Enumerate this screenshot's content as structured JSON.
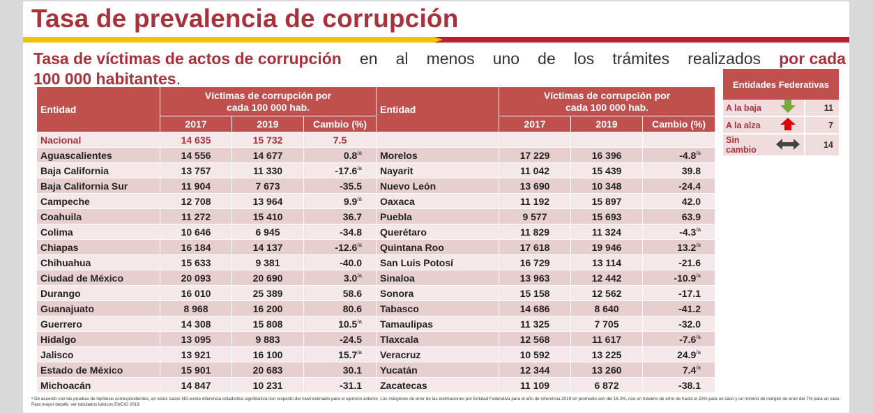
{
  "title": "Tasa de prevalencia de corrupción",
  "subtitle": {
    "part1": "Tasa de víctimas de actos de corrupción",
    "part2": "en",
    "part3": "al",
    "part4": "menos",
    "part5": "uno",
    "part6": "de",
    "part7": "los",
    "part8": "trámites",
    "part9": "realizados",
    "part10": "por cada",
    "part11": "100 000 habitantes",
    "part12": "."
  },
  "table": {
    "col_entidad": "Entidad",
    "col_group": "Víctimas de corrupción por cada 100 000 hab.",
    "col_2017": "2017",
    "col_2019": "2019",
    "col_cambio": "Cambio (%)",
    "nacional": {
      "name": "Nacional",
      "v2017": "14 635",
      "v2019": "15 732",
      "cambio": "7.5",
      "sup": ""
    },
    "left_rows": [
      {
        "name": "Aguascalientes",
        "v2017": "14 556",
        "v2019": "14 677",
        "cambio": "0.8",
        "sup": "/a"
      },
      {
        "name": "Baja California",
        "v2017": "13 757",
        "v2019": "11 330",
        "cambio": "-17.6",
        "sup": "/a"
      },
      {
        "name": "Baja California Sur",
        "v2017": "11 904",
        "v2019": "7 673",
        "cambio": "-35.5",
        "sup": ""
      },
      {
        "name": "Campeche",
        "v2017": "12 708",
        "v2019": "13 964",
        "cambio": "9.9",
        "sup": "/a"
      },
      {
        "name": "Coahuila",
        "v2017": "11 272",
        "v2019": "15 410",
        "cambio": "36.7",
        "sup": ""
      },
      {
        "name": "Colima",
        "v2017": "10 646",
        "v2019": "6 945",
        "cambio": "-34.8",
        "sup": ""
      },
      {
        "name": "Chiapas",
        "v2017": "16 184",
        "v2019": "14 137",
        "cambio": "-12.6",
        "sup": "/a"
      },
      {
        "name": "Chihuahua",
        "v2017": "15 633",
        "v2019": "9 381",
        "cambio": "-40.0",
        "sup": ""
      },
      {
        "name": "Ciudad de México",
        "v2017": "20 093",
        "v2019": "20 690",
        "cambio": "3.0",
        "sup": "/a"
      },
      {
        "name": "Durango",
        "v2017": "16 010",
        "v2019": "25 389",
        "cambio": "58.6",
        "sup": ""
      },
      {
        "name": "Guanajuato",
        "v2017": "8 968",
        "v2019": "16 200",
        "cambio": "80.6",
        "sup": ""
      },
      {
        "name": "Guerrero",
        "v2017": "14 308",
        "v2019": "15 808",
        "cambio": "10.5",
        "sup": "/a"
      },
      {
        "name": "Hidalgo",
        "v2017": "13 095",
        "v2019": "9 883",
        "cambio": "-24.5",
        "sup": ""
      },
      {
        "name": "Jalisco",
        "v2017": "13 921",
        "v2019": "16 100",
        "cambio": "15.7",
        "sup": "/a"
      },
      {
        "name": "Estado de México",
        "v2017": "15 901",
        "v2019": "20 683",
        "cambio": "30.1",
        "sup": ""
      },
      {
        "name": "Michoacán",
        "v2017": "14 847",
        "v2019": "10 231",
        "cambio": "-31.1",
        "sup": ""
      }
    ],
    "right_rows": [
      {
        "name": "Morelos",
        "v2017": "17 229",
        "v2019": "16 396",
        "cambio": "-4.8",
        "sup": "/a"
      },
      {
        "name": "Nayarit",
        "v2017": "11 042",
        "v2019": "15 439",
        "cambio": "39.8",
        "sup": ""
      },
      {
        "name": "Nuevo León",
        "v2017": "13 690",
        "v2019": "10 348",
        "cambio": "-24.4",
        "sup": ""
      },
      {
        "name": "Oaxaca",
        "v2017": "11 192",
        "v2019": "15 897",
        "cambio": "42.0",
        "sup": ""
      },
      {
        "name": "Puebla",
        "v2017": "9 577",
        "v2019": "15 693",
        "cambio": "63.9",
        "sup": ""
      },
      {
        "name": "Querétaro",
        "v2017": "11 829",
        "v2019": "11 324",
        "cambio": "-4.3",
        "sup": "/a"
      },
      {
        "name": "Quintana Roo",
        "v2017": "17 618",
        "v2019": "19 946",
        "cambio": "13.2",
        "sup": "/a"
      },
      {
        "name": "San Luis Potosí",
        "v2017": "16 729",
        "v2019": "13 114",
        "cambio": "-21.6",
        "sup": ""
      },
      {
        "name": "Sinaloa",
        "v2017": "13 963",
        "v2019": "12 442",
        "cambio": "-10.9",
        "sup": "/a"
      },
      {
        "name": "Sonora",
        "v2017": "15 158",
        "v2019": "12 562",
        "cambio": "-17.1",
        "sup": ""
      },
      {
        "name": "Tabasco",
        "v2017": "14 686",
        "v2019": "8 640",
        "cambio": "-41.2",
        "sup": ""
      },
      {
        "name": "Tamaulipas",
        "v2017": "11 325",
        "v2019": "7 705",
        "cambio": "-32.0",
        "sup": ""
      },
      {
        "name": "Tlaxcala",
        "v2017": "12 568",
        "v2019": "11 617",
        "cambio": "-7.6",
        "sup": "/a"
      },
      {
        "name": "Veracruz",
        "v2017": "10 592",
        "v2019": "13 225",
        "cambio": "24.9",
        "sup": "/a"
      },
      {
        "name": "Yucatán",
        "v2017": "12 344",
        "v2019": "13 260",
        "cambio": "7.4",
        "sup": "/a"
      },
      {
        "name": "Zacatecas",
        "v2017": "11 109",
        "v2019": "6 872",
        "cambio": "-38.1",
        "sup": ""
      }
    ]
  },
  "legend": {
    "header": "Entidades Federativas",
    "rows": [
      {
        "label": "A la baja",
        "icon": "down-arrow-icon",
        "color": "#7aab38",
        "count": "11"
      },
      {
        "label": "A la alza",
        "icon": "up-arrow-icon",
        "color": "#e00000",
        "count": "7"
      },
      {
        "label": "Sin cambio",
        "icon": "left-right-arrow-icon",
        "color": "#444444",
        "count": "14"
      }
    ]
  },
  "footnote": "ᵃ De acuerdo con las pruebas de hipótesis correspondientes, en estos casos NO existe diferencia estadística significativa con respecto del nivel estimado para el ejercicio anterior. Los márgenes de error de las estimaciones por Entidad Federativa para el año de referencia 2019 en promedio son del 16.3%, con un máximo de error de hasta el 23% para un caso y un mínimo de margen de error del 7% para un caso. Para mayor detalle, ver tabulados básicos ENCIG 2019.",
  "colors": {
    "brand_red": "#a8323c",
    "header_red": "#c0504d",
    "yellow": "#f2c200",
    "row_dark": "#e8cfcf",
    "row_light": "#f4e8e8"
  }
}
